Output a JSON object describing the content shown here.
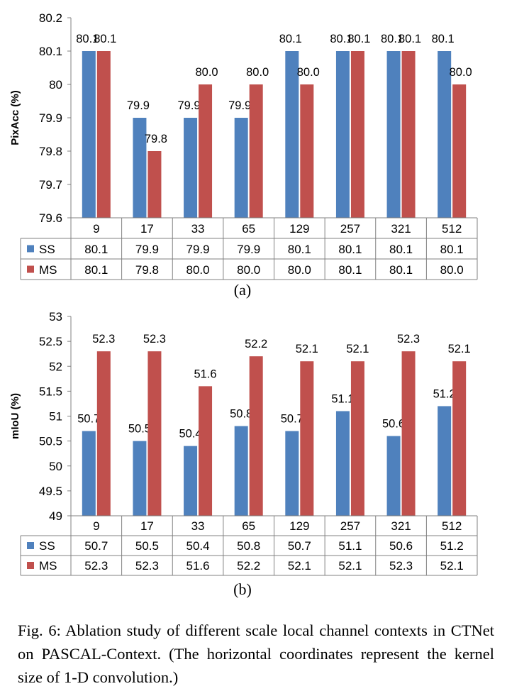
{
  "chart_data": [
    {
      "type": "bar",
      "ylabel": "PixAcc (%)",
      "ylim": [
        79.6,
        80.2
      ],
      "yticks": [
        "79.6",
        "79.7",
        "79.8",
        "79.9",
        "80",
        "80.1",
        "80.2"
      ],
      "categories": [
        "9",
        "17",
        "33",
        "65",
        "129",
        "257",
        "321",
        "512"
      ],
      "series": [
        {
          "name": "SS",
          "color": "#4F81BD",
          "values": [
            80.1,
            79.9,
            79.9,
            79.9,
            80.1,
            80.1,
            80.1,
            80.1
          ],
          "labels": [
            "80.1",
            "79.9",
            "79.9",
            "79.9",
            "80.1",
            "80.1",
            "80.1",
            "80.1"
          ]
        },
        {
          "name": "MS",
          "color": "#C0504D",
          "values": [
            80.1,
            79.8,
            80.0,
            80.0,
            80.0,
            80.1,
            80.1,
            80.0
          ],
          "labels": [
            "80.1",
            "79.8",
            "80.0",
            "80.0",
            "80.0",
            "80.1",
            "80.1",
            "80.0"
          ]
        }
      ],
      "grid": false,
      "legend": "data-table"
    },
    {
      "type": "bar",
      "ylabel": "mIoU (%)",
      "ylim": [
        49,
        53
      ],
      "yticks": [
        "49",
        "49.5",
        "50",
        "50.5",
        "51",
        "51.5",
        "52",
        "52.5",
        "53"
      ],
      "categories": [
        "9",
        "17",
        "33",
        "65",
        "129",
        "257",
        "321",
        "512"
      ],
      "series": [
        {
          "name": "SS",
          "color": "#4F81BD",
          "values": [
            50.7,
            50.5,
            50.4,
            50.8,
            50.7,
            51.1,
            50.6,
            51.2
          ],
          "labels": [
            "50.7",
            "50.5",
            "50.4",
            "50.8",
            "50.7",
            "51.1",
            "50.6",
            "51.2"
          ]
        },
        {
          "name": "MS",
          "color": "#C0504D",
          "values": [
            52.3,
            52.3,
            51.6,
            52.2,
            52.1,
            52.1,
            52.3,
            52.1
          ],
          "labels": [
            "52.3",
            "52.3",
            "51.6",
            "52.2",
            "52.1",
            "52.1",
            "52.3",
            "52.1"
          ]
        }
      ],
      "grid": false,
      "legend": "data-table"
    }
  ],
  "subfigure_labels": [
    "(a)",
    "(b)"
  ],
  "caption": "Fig. 6: Ablation study of different scale local channel contexts in CTNet on PASCAL-Context. (The horizontal coordinates represent the kernel size of 1-D convolution.)"
}
